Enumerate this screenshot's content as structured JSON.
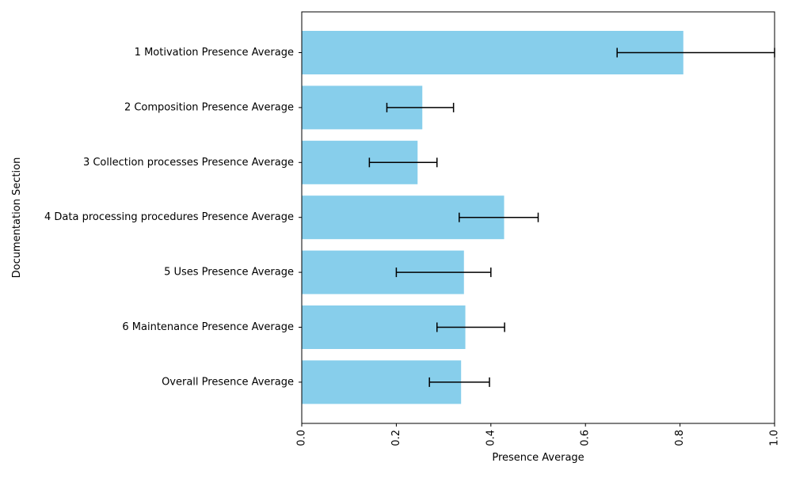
{
  "chart_data": {
    "type": "bar",
    "orientation": "horizontal",
    "title": "",
    "xlabel": "Presence Average",
    "ylabel": "Documentation Section",
    "xlim": [
      0,
      1.0
    ],
    "xticks": [
      {
        "value": 0.0,
        "label": "0.0"
      },
      {
        "value": 0.2,
        "label": "0.2"
      },
      {
        "value": 0.4,
        "label": "0.4"
      },
      {
        "value": 0.6,
        "label": "0.6"
      },
      {
        "value": 0.8,
        "label": "0.8"
      },
      {
        "value": 1.0,
        "label": "1.0"
      }
    ],
    "categories": [
      "1 Motivation Presence Average",
      "2 Composition Presence Average",
      "3 Collection processes Presence Average",
      "4 Data processing procedures Presence Average",
      "5 Uses Presence Average",
      "6 Maintenance Presence Average",
      "Overall Presence Average"
    ],
    "values": [
      0.807,
      0.255,
      0.245,
      0.428,
      0.343,
      0.346,
      0.337
    ],
    "error_low": [
      0.667,
      0.18,
      0.143,
      0.333,
      0.2,
      0.286,
      0.27
    ],
    "error_high": [
      1.0,
      0.321,
      0.286,
      0.5,
      0.4,
      0.429,
      0.397
    ],
    "bar_color": "#87ceeb",
    "error_color": "#000000",
    "grid": false,
    "legend": false
  }
}
